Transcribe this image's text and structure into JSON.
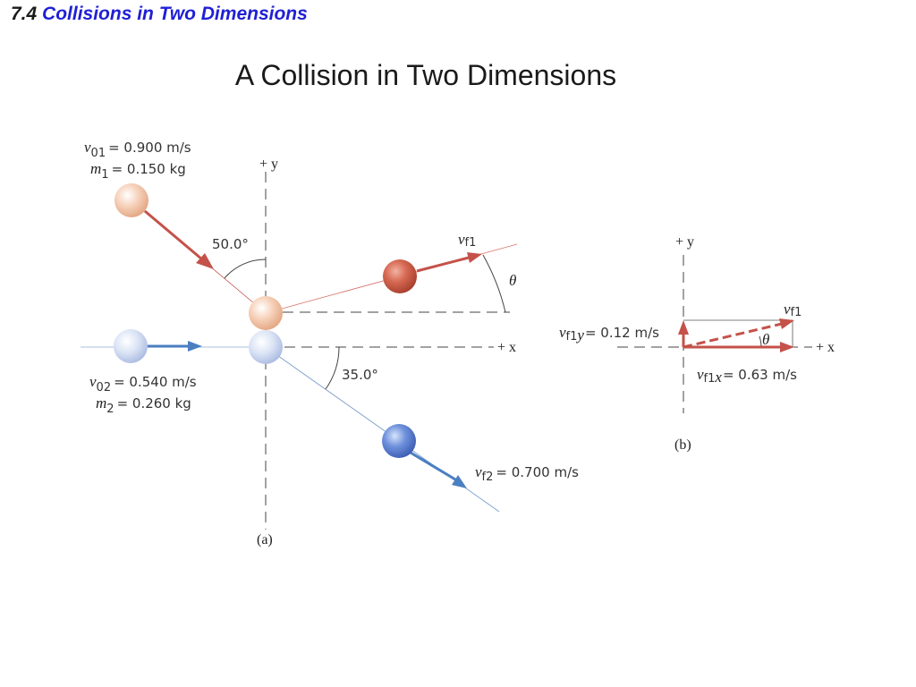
{
  "header": {
    "section_number": "7.4",
    "section_title": "Collisions in Two Dimensions"
  },
  "title": "A Collision in Two Dimensions",
  "colors": {
    "red_arrow": "#c4524a",
    "blue_arrow": "#4a7fc1",
    "header_blue": "#1f1fd6"
  },
  "figure_a": {
    "caption": "(a)",
    "axis_y": "+ y",
    "axis_x": "+ x",
    "ball1": {
      "v_symbol": "v",
      "v_sub": "01",
      "v_value": "= 0.900 m/s",
      "m_symbol": "m",
      "m_sub": "1",
      "m_value": "= 0.150 kg"
    },
    "ball2": {
      "v_symbol": "v",
      "v_sub": "02",
      "v_value": "= 0.540 m/s",
      "m_symbol": "m",
      "m_sub": "2",
      "m_value": "= 0.260 kg"
    },
    "angle1": "50.0°",
    "angle2": "35.0°",
    "vf1": {
      "symbol": "v",
      "sub": "f1"
    },
    "theta": "θ",
    "vf2": {
      "symbol": "v",
      "sub": "f2",
      "value": "= 0.700 m/s"
    }
  },
  "figure_b": {
    "caption": "(b)",
    "axis_y": "+ y",
    "axis_x": "+ x",
    "vf1": {
      "symbol": "v",
      "sub": "f1"
    },
    "vf1y": {
      "symbol": "v",
      "sub": "f1",
      "sub_axis": "y",
      "value": "= 0.12 m/s"
    },
    "vf1x": {
      "symbol": "v",
      "sub": "f1",
      "sub_axis": "x",
      "value": "= 0.63 m/s"
    },
    "theta": "θ"
  }
}
